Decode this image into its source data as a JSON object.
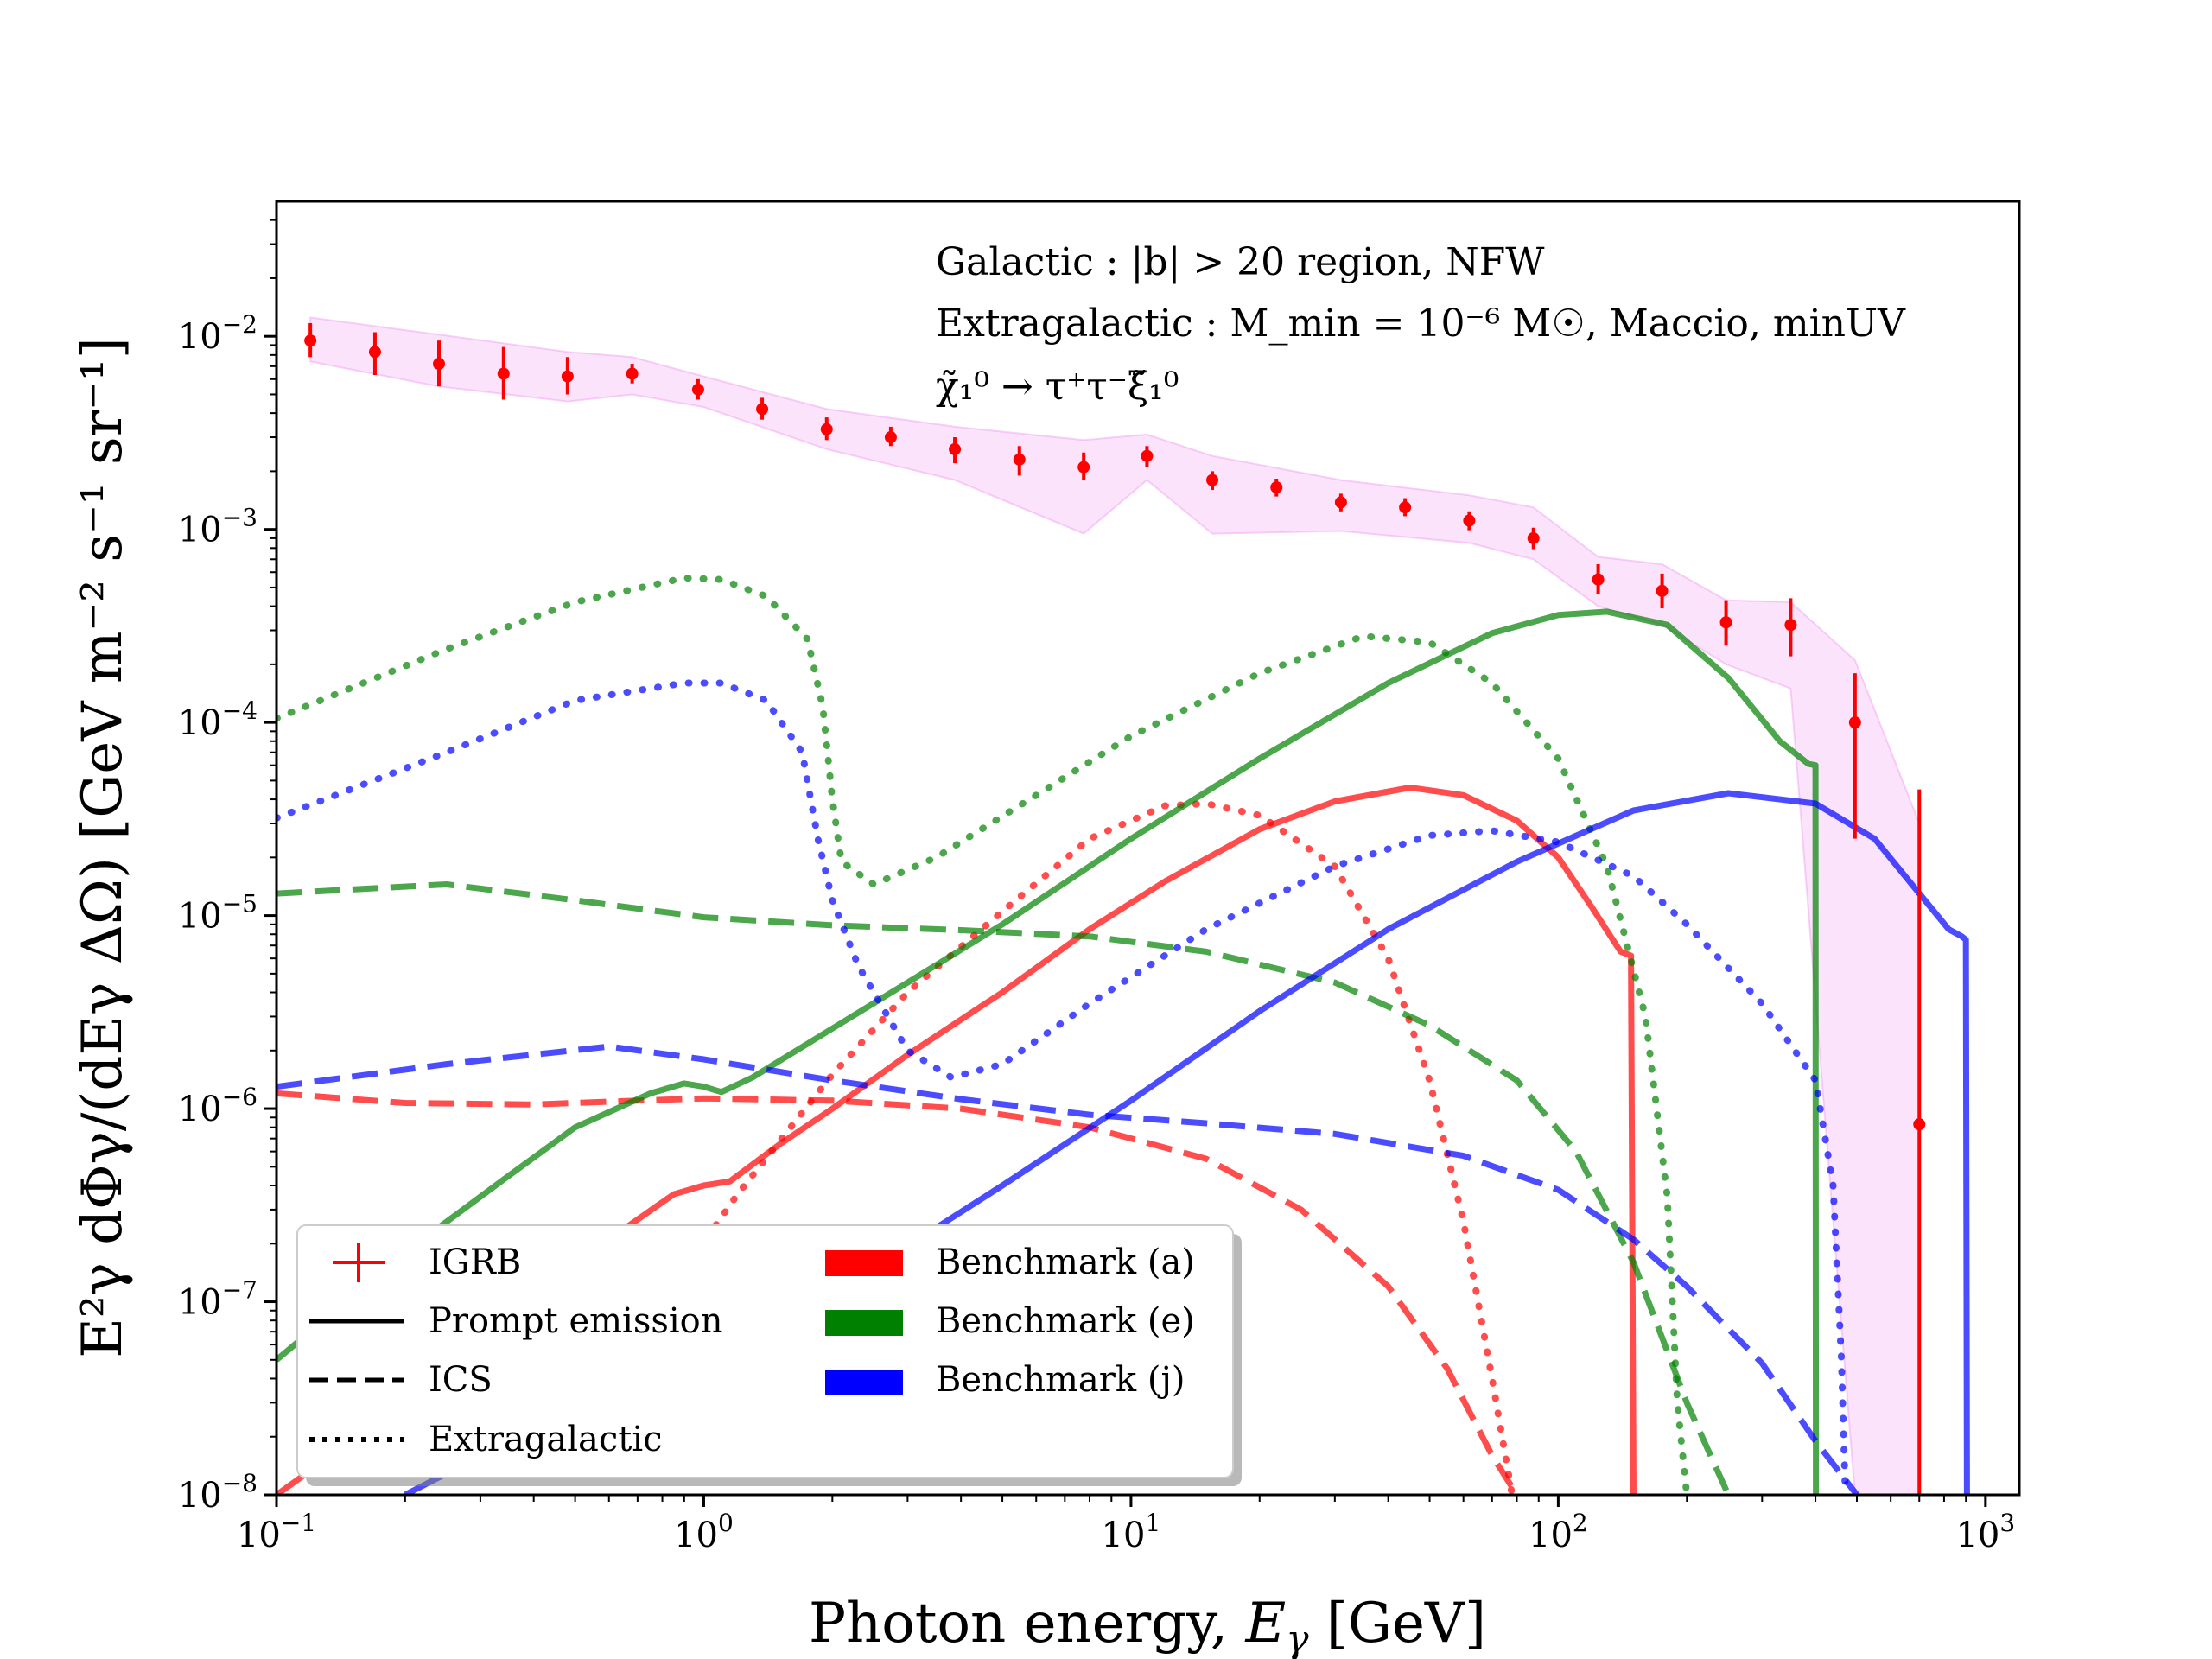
{
  "chart_data": {
    "type": "line",
    "xlabel_prefix": "Photon energy, ",
    "xlabel_var": "E",
    "xlabel_sub": "γ",
    "xlabel_unit": " [GeV]",
    "ylabel": "E²γ dΦγ/(dEγ ΔΩ) [GeV m⁻² s⁻¹ sr⁻¹]",
    "xscale": "log",
    "yscale": "log",
    "xlim": [
      0.1,
      1200
    ],
    "ylim": [
      1e-08,
      0.05
    ],
    "x_ticks": [
      {
        "value": 0.1,
        "base": "10",
        "exp": "−1"
      },
      {
        "value": 1,
        "base": "10",
        "exp": "0"
      },
      {
        "value": 10,
        "base": "10",
        "exp": "1"
      },
      {
        "value": 100,
        "base": "10",
        "exp": "2"
      },
      {
        "value": 1000,
        "base": "10",
        "exp": "3"
      }
    ],
    "y_ticks": [
      {
        "value": 1e-08,
        "base": "10",
        "exp": "−8"
      },
      {
        "value": 1e-07,
        "base": "10",
        "exp": "−7"
      },
      {
        "value": 1e-06,
        "base": "10",
        "exp": "−6"
      },
      {
        "value": 1e-05,
        "base": "10",
        "exp": "−5"
      },
      {
        "value": 0.0001,
        "base": "10",
        "exp": "−4"
      },
      {
        "value": 0.001,
        "base": "10",
        "exp": "−3"
      },
      {
        "value": 0.01,
        "base": "10",
        "exp": "−2"
      }
    ],
    "annotations": [
      "Galactic : |b| > 20 region, NFW",
      "Extragalactic : M_min = 10⁻⁶ M☉, Maccio, minUV",
      "χ̃₁⁰ → τ⁺τ⁻ξ̃₁⁰"
    ],
    "igrb": {
      "name": "IGRB",
      "color": "#ff0000",
      "points": [
        {
          "x": 0.12,
          "y": 0.0095,
          "lo": 0.0078,
          "hi": 0.0117
        },
        {
          "x": 0.17,
          "y": 0.0083,
          "lo": 0.0063,
          "hi": 0.0105
        },
        {
          "x": 0.24,
          "y": 0.0072,
          "lo": 0.0055,
          "hi": 0.0095
        },
        {
          "x": 0.34,
          "y": 0.0064,
          "lo": 0.0047,
          "hi": 0.0088
        },
        {
          "x": 0.48,
          "y": 0.0062,
          "lo": 0.005,
          "hi": 0.0078
        },
        {
          "x": 0.68,
          "y": 0.0064,
          "lo": 0.0057,
          "hi": 0.0072
        },
        {
          "x": 0.97,
          "y": 0.0053,
          "lo": 0.0047,
          "hi": 0.006
        },
        {
          "x": 1.37,
          "y": 0.0042,
          "lo": 0.0037,
          "hi": 0.0048
        },
        {
          "x": 1.94,
          "y": 0.0033,
          "lo": 0.0029,
          "hi": 0.0038
        },
        {
          "x": 2.74,
          "y": 0.003,
          "lo": 0.0027,
          "hi": 0.0034
        },
        {
          "x": 3.87,
          "y": 0.0026,
          "lo": 0.0022,
          "hi": 0.003
        },
        {
          "x": 5.48,
          "y": 0.0023,
          "lo": 0.0019,
          "hi": 0.0027
        },
        {
          "x": 7.75,
          "y": 0.0021,
          "lo": 0.0018,
          "hi": 0.0025
        },
        {
          "x": 10.9,
          "y": 0.0024,
          "lo": 0.0021,
          "hi": 0.0027
        },
        {
          "x": 15.5,
          "y": 0.0018,
          "lo": 0.0016,
          "hi": 0.002
        },
        {
          "x": 21.9,
          "y": 0.00165,
          "lo": 0.00148,
          "hi": 0.00183
        },
        {
          "x": 31.0,
          "y": 0.00138,
          "lo": 0.00124,
          "hi": 0.00153
        },
        {
          "x": 43.8,
          "y": 0.0013,
          "lo": 0.00117,
          "hi": 0.00145
        },
        {
          "x": 61.9,
          "y": 0.00111,
          "lo": 0.00099,
          "hi": 0.00124
        },
        {
          "x": 87.5,
          "y": 0.0009,
          "lo": 0.00079,
          "hi": 0.00102
        },
        {
          "x": 124,
          "y": 0.00055,
          "lo": 0.00046,
          "hi": 0.00066
        },
        {
          "x": 175,
          "y": 0.00048,
          "lo": 0.00039,
          "hi": 0.00059
        },
        {
          "x": 247,
          "y": 0.00033,
          "lo": 0.00025,
          "hi": 0.00043
        },
        {
          "x": 350,
          "y": 0.00032,
          "lo": 0.00022,
          "hi": 0.00044
        },
        {
          "x": 495,
          "y": 0.0001,
          "lo": 2.5e-05,
          "hi": 0.00018
        },
        {
          "x": 700,
          "y": 8.3e-07,
          "lo": 1e-08,
          "hi": 4.5e-05
        }
      ]
    },
    "band": {
      "color": "#ee82ee",
      "upper": [
        [
          0.12,
          0.0125
        ],
        [
          0.24,
          0.0102
        ],
        [
          0.48,
          0.0083
        ],
        [
          0.68,
          0.0078
        ],
        [
          1.0,
          0.0062
        ],
        [
          1.94,
          0.0042
        ],
        [
          3.87,
          0.0034
        ],
        [
          7.75,
          0.0029
        ],
        [
          10.9,
          0.0031
        ],
        [
          15.5,
          0.0024
        ],
        [
          31.0,
          0.0018
        ],
        [
          61.9,
          0.0015
        ],
        [
          87.5,
          0.0013
        ],
        [
          124,
          0.00072
        ],
        [
          175,
          0.00066
        ],
        [
          247,
          0.00043
        ],
        [
          350,
          0.00042
        ],
        [
          495,
          0.00021
        ],
        [
          700,
          3e-05
        ]
      ],
      "lower": [
        [
          0.12,
          0.0074
        ],
        [
          0.24,
          0.0055
        ],
        [
          0.48,
          0.0046
        ],
        [
          0.68,
          0.005
        ],
        [
          1.0,
          0.0043
        ],
        [
          1.94,
          0.0026
        ],
        [
          3.87,
          0.0018
        ],
        [
          7.75,
          0.00095
        ],
        [
          10.9,
          0.0018
        ],
        [
          15.5,
          0.00095
        ],
        [
          31.0,
          0.00098
        ],
        [
          61.9,
          0.00085
        ],
        [
          87.5,
          0.0007
        ],
        [
          124,
          0.0004
        ],
        [
          175,
          0.00032
        ],
        [
          247,
          0.0002
        ],
        [
          350,
          0.00015
        ],
        [
          495,
          1e-08
        ],
        [
          700,
          1e-08
        ]
      ]
    },
    "series": [
      {
        "name": "Prompt (a)",
        "benchmark": "a",
        "component": "prompt",
        "color": "#ff0000",
        "points": [
          [
            0.1,
            1e-08
          ],
          [
            0.2,
            3e-08
          ],
          [
            0.4,
            1e-07
          ],
          [
            0.6,
            2.1e-07
          ],
          [
            0.85,
            3.6e-07
          ],
          [
            1.0,
            4e-07
          ],
          [
            1.15,
            4.2e-07
          ],
          [
            1.5,
            6.5e-07
          ],
          [
            2.0,
            1e-06
          ],
          [
            3.0,
            1.9e-06
          ],
          [
            5.0,
            4e-06
          ],
          [
            8.0,
            8.5e-06
          ],
          [
            12,
            1.5e-05
          ],
          [
            20,
            2.8e-05
          ],
          [
            30,
            3.9e-05
          ],
          [
            45,
            4.6e-05
          ],
          [
            60,
            4.2e-05
          ],
          [
            80,
            3.1e-05
          ],
          [
            100,
            2e-05
          ],
          [
            120,
            1.1e-05
          ],
          [
            140,
            6.5e-06
          ],
          [
            148,
            6.2e-06
          ],
          [
            150,
            1e-08
          ]
        ]
      },
      {
        "name": "ICS (a)",
        "benchmark": "a",
        "component": "ics",
        "color": "#ff0000",
        "points": [
          [
            0.1,
            1.2e-06
          ],
          [
            0.2,
            1.07e-06
          ],
          [
            0.4,
            1.05e-06
          ],
          [
            0.7,
            1.1e-06
          ],
          [
            1.0,
            1.13e-06
          ],
          [
            2.0,
            1.1e-06
          ],
          [
            4.0,
            1e-06
          ],
          [
            8.0,
            8e-07
          ],
          [
            15,
            5.5e-07
          ],
          [
            25,
            3e-07
          ],
          [
            40,
            1.2e-07
          ],
          [
            55,
            4.5e-08
          ],
          [
            70,
            1.6e-08
          ],
          [
            80,
            1e-08
          ]
        ]
      },
      {
        "name": "Extragalactic (a)",
        "benchmark": "a",
        "component": "extragalactic",
        "color": "#ff0000",
        "points": [
          [
            0.8,
            1e-07
          ],
          [
            1.2,
            3.6e-07
          ],
          [
            2.0,
            1.5e-06
          ],
          [
            3.0,
            4e-06
          ],
          [
            5.0,
            1.05e-05
          ],
          [
            8.0,
            2.5e-05
          ],
          [
            12,
            3.7e-05
          ],
          [
            15,
            3.8e-05
          ],
          [
            20,
            3.3e-05
          ],
          [
            30,
            1.8e-05
          ],
          [
            40,
            6e-06
          ],
          [
            50,
            1.4e-06
          ],
          [
            60,
            2.6e-07
          ],
          [
            70,
            4e-08
          ],
          [
            78,
            1e-08
          ]
        ]
      },
      {
        "name": "Prompt (e)",
        "benchmark": "e",
        "component": "prompt",
        "color": "#008000",
        "points": [
          [
            0.1,
            5e-08
          ],
          [
            0.2,
            1.8e-07
          ],
          [
            0.35,
            4.5e-07
          ],
          [
            0.5,
            8e-07
          ],
          [
            0.75,
            1.2e-06
          ],
          [
            0.9,
            1.35e-06
          ],
          [
            1.0,
            1.3e-06
          ],
          [
            1.1,
            1.22e-06
          ],
          [
            1.3,
            1.45e-06
          ],
          [
            2.0,
            2.6e-06
          ],
          [
            3.0,
            4.5e-06
          ],
          [
            5.0,
            9e-06
          ],
          [
            10,
            2.5e-05
          ],
          [
            20,
            6.5e-05
          ],
          [
            40,
            0.00016
          ],
          [
            70,
            0.00029
          ],
          [
            100,
            0.00036
          ],
          [
            130,
            0.000375
          ],
          [
            180,
            0.00032
          ],
          [
            250,
            0.00017
          ],
          [
            330,
            8e-05
          ],
          [
            385,
            6.1e-05
          ],
          [
            400,
            6e-05
          ],
          [
            401,
            1e-08
          ]
        ]
      },
      {
        "name": "ICS (e)",
        "benchmark": "e",
        "component": "ics",
        "color": "#008000",
        "points": [
          [
            0.1,
            1.3e-05
          ],
          [
            0.25,
            1.45e-05
          ],
          [
            0.5,
            1.2e-05
          ],
          [
            1.0,
            9.8e-06
          ],
          [
            2.0,
            8.9e-06
          ],
          [
            4.0,
            8.4e-06
          ],
          [
            8.0,
            7.8e-06
          ],
          [
            15,
            6.5e-06
          ],
          [
            30,
            4.5e-06
          ],
          [
            50,
            2.7e-06
          ],
          [
            80,
            1.4e-06
          ],
          [
            110,
            6e-07
          ],
          [
            150,
            1.6e-07
          ],
          [
            200,
            3e-08
          ],
          [
            250,
            1e-08
          ]
        ]
      },
      {
        "name": "Extragalactic (e)",
        "benchmark": "e",
        "component": "extragalactic",
        "color": "#008000",
        "points": [
          [
            0.1,
            0.000105
          ],
          [
            0.25,
            0.00024
          ],
          [
            0.5,
            0.00042
          ],
          [
            0.9,
            0.00056
          ],
          [
            1.1,
            0.00055
          ],
          [
            1.4,
            0.00045
          ],
          [
            1.75,
            0.00027
          ],
          [
            1.9,
            0.00012
          ],
          [
            2.0,
            4e-05
          ],
          [
            2.1,
            1.9e-05
          ],
          [
            2.5,
            1.45e-05
          ],
          [
            3.5,
            2e-05
          ],
          [
            6.0,
            4.2e-05
          ],
          [
            10,
            8.5e-05
          ],
          [
            20,
            0.00018
          ],
          [
            35,
            0.00028
          ],
          [
            50,
            0.00026
          ],
          [
            70,
            0.00016
          ],
          [
            100,
            6.5e-05
          ],
          [
            130,
            1.8e-05
          ],
          [
            160,
            3e-06
          ],
          [
            180,
            3.5e-07
          ],
          [
            190,
            3e-08
          ],
          [
            200,
            1e-08
          ]
        ]
      },
      {
        "name": "Prompt (j)",
        "benchmark": "j",
        "component": "prompt",
        "color": "#0000ff",
        "points": [
          [
            0.2,
            1e-08
          ],
          [
            0.4,
            2.2e-08
          ],
          [
            1.0,
            6e-08
          ],
          [
            2.5,
            1.5e-07
          ],
          [
            5.0,
            4e-07
          ],
          [
            10,
            1.1e-06
          ],
          [
            20,
            3.2e-06
          ],
          [
            40,
            8.5e-06
          ],
          [
            80,
            1.9e-05
          ],
          [
            150,
            3.5e-05
          ],
          [
            250,
            4.3e-05
          ],
          [
            400,
            3.8e-05
          ],
          [
            550,
            2.5e-05
          ],
          [
            700,
            1.3e-05
          ],
          [
            820,
            8.5e-06
          ],
          [
            880,
            7.8e-06
          ],
          [
            900,
            7.5e-06
          ],
          [
            905,
            1e-08
          ]
        ]
      },
      {
        "name": "ICS (j)",
        "benchmark": "j",
        "component": "ics",
        "color": "#0000ff",
        "points": [
          [
            0.1,
            1.3e-06
          ],
          [
            0.25,
            1.7e-06
          ],
          [
            0.6,
            2.1e-06
          ],
          [
            1.0,
            1.8e-06
          ],
          [
            2.0,
            1.4e-06
          ],
          [
            4.0,
            1.12e-06
          ],
          [
            8.0,
            9.3e-07
          ],
          [
            15,
            8.4e-07
          ],
          [
            30,
            7.4e-07
          ],
          [
            60,
            5.7e-07
          ],
          [
            100,
            3.8e-07
          ],
          [
            150,
            2.1e-07
          ],
          [
            200,
            1.2e-07
          ],
          [
            300,
            4.8e-08
          ],
          [
            400,
            1.9e-08
          ],
          [
            500,
            1e-08
          ]
        ]
      },
      {
        "name": "Extragalactic (j)",
        "benchmark": "j",
        "component": "extragalactic",
        "color": "#0000ff",
        "points": [
          [
            0.1,
            3.2e-05
          ],
          [
            0.25,
            7e-05
          ],
          [
            0.5,
            0.00013
          ],
          [
            0.9,
            0.00016
          ],
          [
            1.1,
            0.00016
          ],
          [
            1.4,
            0.00013
          ],
          [
            1.7,
            7e-05
          ],
          [
            1.85,
            2.5e-05
          ],
          [
            2.0,
            1.2e-05
          ],
          [
            2.3,
            5.5e-06
          ],
          [
            3.0,
            2e-06
          ],
          [
            3.8,
            1.45e-06
          ],
          [
            5.0,
            1.7e-06
          ],
          [
            8.0,
            3.5e-06
          ],
          [
            15,
            8.5e-06
          ],
          [
            30,
            1.8e-05
          ],
          [
            50,
            2.6e-05
          ],
          [
            70,
            2.75e-05
          ],
          [
            100,
            2.4e-05
          ],
          [
            150,
            1.6e-05
          ],
          [
            200,
            9e-06
          ],
          [
            300,
            3.5e-06
          ],
          [
            400,
            1.4e-06
          ],
          [
            440,
            4e-07
          ],
          [
            460,
            5e-08
          ],
          [
            470,
            1e-08
          ]
        ]
      }
    ],
    "legend": {
      "position": "lower-left",
      "items": [
        {
          "label": "IGRB",
          "kind": "errorbar",
          "color": "#ff0000"
        },
        {
          "label": "Prompt emission",
          "kind": "solid",
          "color": "#000000"
        },
        {
          "label": "ICS",
          "kind": "dashed",
          "color": "#000000"
        },
        {
          "label": "Extragalactic",
          "kind": "dotted",
          "color": "#000000"
        },
        {
          "label": "Benchmark (a)",
          "kind": "patch",
          "color": "#ff0000"
        },
        {
          "label": "Benchmark (e)",
          "kind": "patch",
          "color": "#008000"
        },
        {
          "label": "Benchmark (j)",
          "kind": "patch",
          "color": "#0000ff"
        }
      ]
    }
  }
}
